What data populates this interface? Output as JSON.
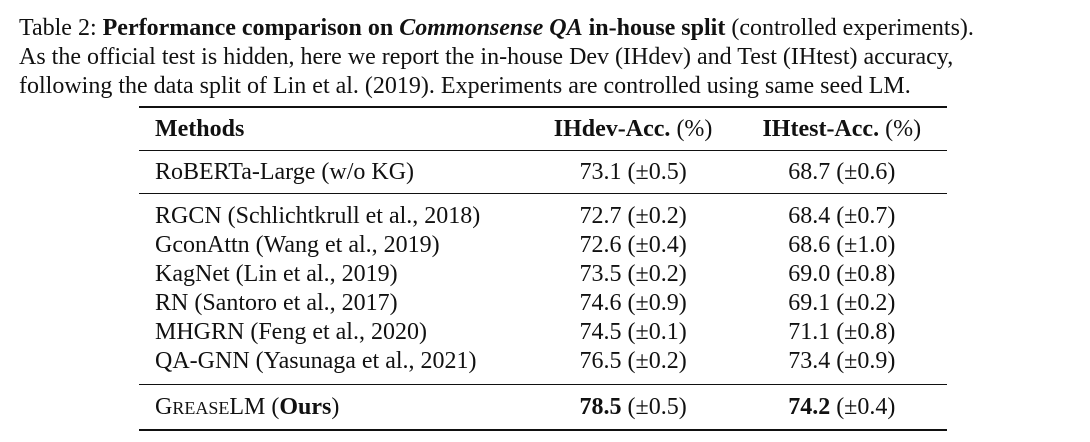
{
  "caption": {
    "label": "Table 2:",
    "bold_part1": "Performance comparison on",
    "italic_bold": "Commonsense QA",
    "bold_part2": "in-house split",
    "rest_line1": "(controlled experiments).",
    "line2": "As the official test is hidden, here we report the in-house Dev (IHdev) and Test (IHtest) accuracy,",
    "line3": "following the data split of Lin et al. (2019). Experiments are controlled using same seed LM."
  },
  "table": {
    "headers": {
      "methods": "Methods",
      "ihdev_bold": "IHdev-Acc.",
      "ihdev_unit": "(%)",
      "ihtest_bold": "IHtest-Acc.",
      "ihtest_unit": "(%)"
    },
    "baseline": {
      "method": "RoBERTa-Large (w/o KG)",
      "ihdev": "73.1 (±0.5)",
      "ihtest": "68.7 (±0.6)"
    },
    "rows": [
      {
        "method": "RGCN (Schlichtkrull et al., 2018)",
        "ihdev": "72.7 (±0.2)",
        "ihtest": "68.4 (±0.7)"
      },
      {
        "method": "GconAttn (Wang et al., 2019)",
        "ihdev": "72.6 (±0.4)",
        "ihtest": "68.6 (±1.0)"
      },
      {
        "method": "KagNet (Lin et al., 2019)",
        "ihdev": "73.5 (±0.2)",
        "ihtest": "69.0 (±0.8)"
      },
      {
        "method": "RN (Santoro et al., 2017)",
        "ihdev": "74.6 (±0.9)",
        "ihtest": "69.1 (±0.2)"
      },
      {
        "method": "MHGRN (Feng et al., 2020)",
        "ihdev": "74.5 (±0.1)",
        "ihtest": "71.1 (±0.8)"
      },
      {
        "method": "QA-GNN (Yasunaga et al., 2021)",
        "ihdev": "76.5 (±0.2)",
        "ihtest": "73.4 (±0.9)"
      }
    ],
    "ours": {
      "name_g": "G",
      "name_rease": "REASE",
      "name_lm": "LM",
      "name_paren_open": "(",
      "name_bold": "Ours",
      "name_paren_close": ")",
      "ihdev_bold": "78.5",
      "ihdev_rest": "(±0.5)",
      "ihtest_bold": "74.2",
      "ihtest_rest": "(±0.4)"
    }
  }
}
